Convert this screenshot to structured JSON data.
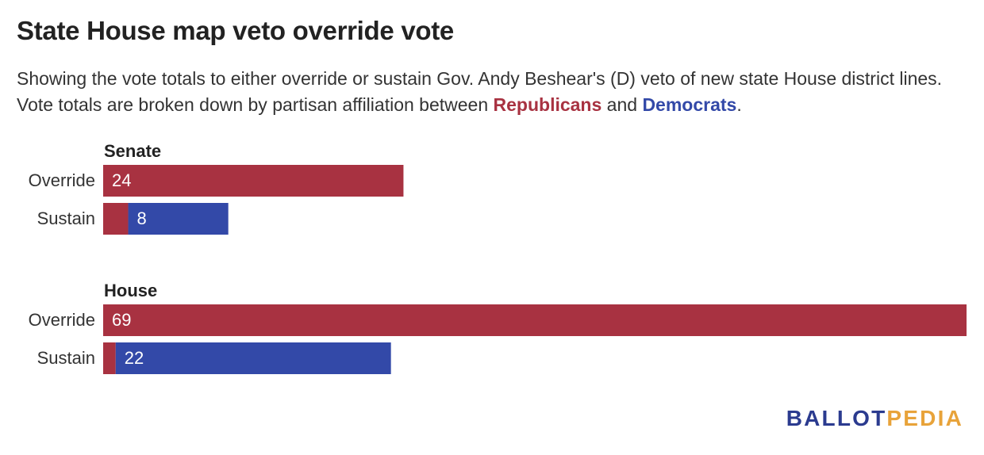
{
  "colors": {
    "republican": "#a83241",
    "democrat": "#3349a8",
    "logo_ballot": "#2b3b8f",
    "logo_pedia": "#e8a33a"
  },
  "header": {
    "title": "State House map veto override vote",
    "subtitle_start": "Showing the vote totals to either override or sustain Gov. Andy Beshear's (D) veto of new state House district lines. Vote totals are broken down by partisan affiliation between ",
    "republicans_label": "Republicans",
    "subtitle_and": " and ",
    "democrats_label": "Democrats",
    "subtitle_end": "."
  },
  "logo": {
    "ballot": "BALLOT",
    "pedia": "PEDIA"
  },
  "chart_data": {
    "type": "bar",
    "orientation": "horizontal",
    "stacked": true,
    "xlim": [
      0,
      69
    ],
    "grid": false,
    "groups": [
      {
        "name": "Senate",
        "categories": [
          "Override",
          "Sustain"
        ],
        "series": [
          {
            "name": "Republicans",
            "values": [
              24,
              2
            ]
          },
          {
            "name": "Democrats",
            "values": [
              0,
              8
            ]
          }
        ],
        "labels": [
          "24",
          "8"
        ]
      },
      {
        "name": "House",
        "categories": [
          "Override",
          "Sustain"
        ],
        "series": [
          {
            "name": "Republicans",
            "values": [
              69,
              1
            ]
          },
          {
            "name": "Democrats",
            "values": [
              0,
              22
            ]
          }
        ],
        "labels": [
          "69",
          "22"
        ]
      }
    ]
  }
}
